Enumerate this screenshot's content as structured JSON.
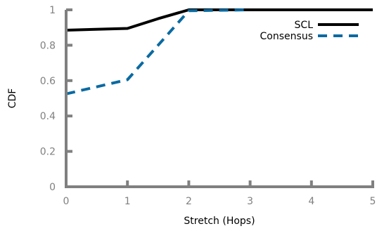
{
  "chart_data": {
    "type": "line",
    "xlabel": "Stretch (Hops)",
    "ylabel": "CDF",
    "xlim": [
      0,
      5
    ],
    "ylim": [
      0,
      1
    ],
    "x_ticks": [
      "0",
      "1",
      "2",
      "3",
      "4",
      "5"
    ],
    "y_ticks": [
      "0",
      "0.2",
      "0.4",
      "0.6",
      "0.8",
      "1"
    ],
    "grid": false,
    "legend_position": "top-right",
    "axis_color": "#808080",
    "series": [
      {
        "name": "SCL",
        "color": "#000000",
        "style": "solid",
        "x": [
          0,
          1,
          1.5,
          2,
          3,
          4,
          5
        ],
        "y": [
          0.885,
          0.895,
          0.95,
          1.0,
          1.0,
          1.0,
          1.0
        ]
      },
      {
        "name": "Consensus",
        "color": "#0a6aa1",
        "style": "dashed",
        "x": [
          0,
          1,
          2,
          3
        ],
        "y": [
          0.525,
          0.605,
          0.995,
          1.0
        ]
      }
    ]
  }
}
